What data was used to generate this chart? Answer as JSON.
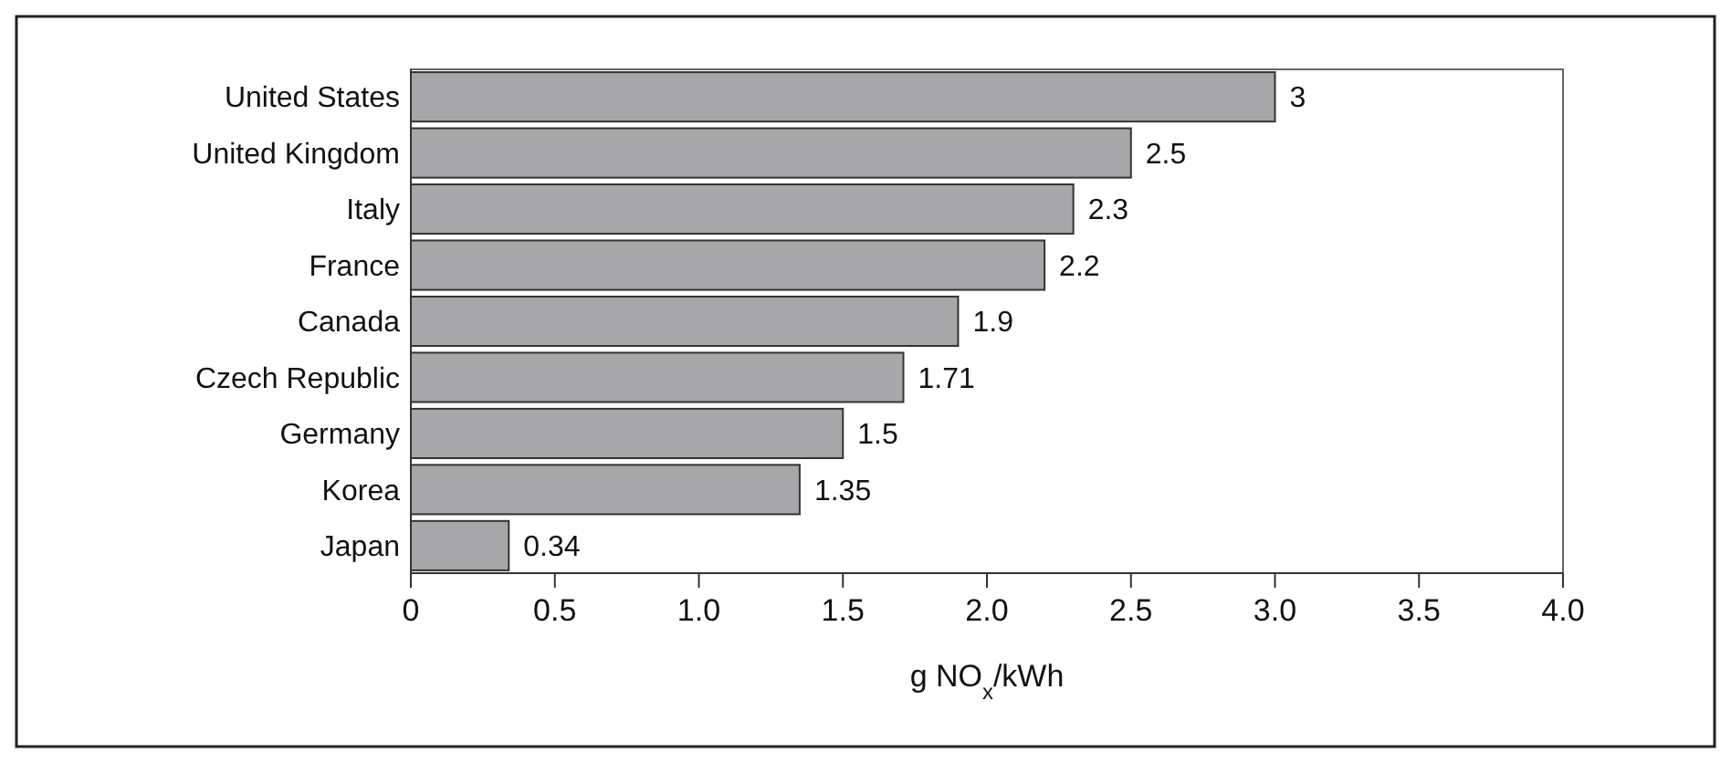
{
  "chart_data": {
    "type": "bar",
    "orientation": "horizontal",
    "categories": [
      "United States",
      "United Kingdom",
      "Italy",
      "France",
      "Canada",
      "Czech Republic",
      "Germany",
      "Korea",
      "Japan"
    ],
    "values": [
      3,
      2.5,
      2.3,
      2.2,
      1.9,
      1.71,
      1.5,
      1.35,
      0.34
    ],
    "color": "#a7a7aa",
    "xlabel": "g NO$_{x}$/kWh",
    "xlim": [
      0,
      4
    ],
    "xticks": [
      0,
      0.5,
      {
        "value": 1,
        "label": "1.0"
      },
      1.5,
      {
        "value": 2,
        "label": "2.0"
      },
      2.5,
      {
        "value": 3,
        "label": "3.0"
      },
      3.5,
      {
        "value": 4,
        "label": "4.0"
      }
    ],
    "data_labels": true,
    "grid": false
  }
}
